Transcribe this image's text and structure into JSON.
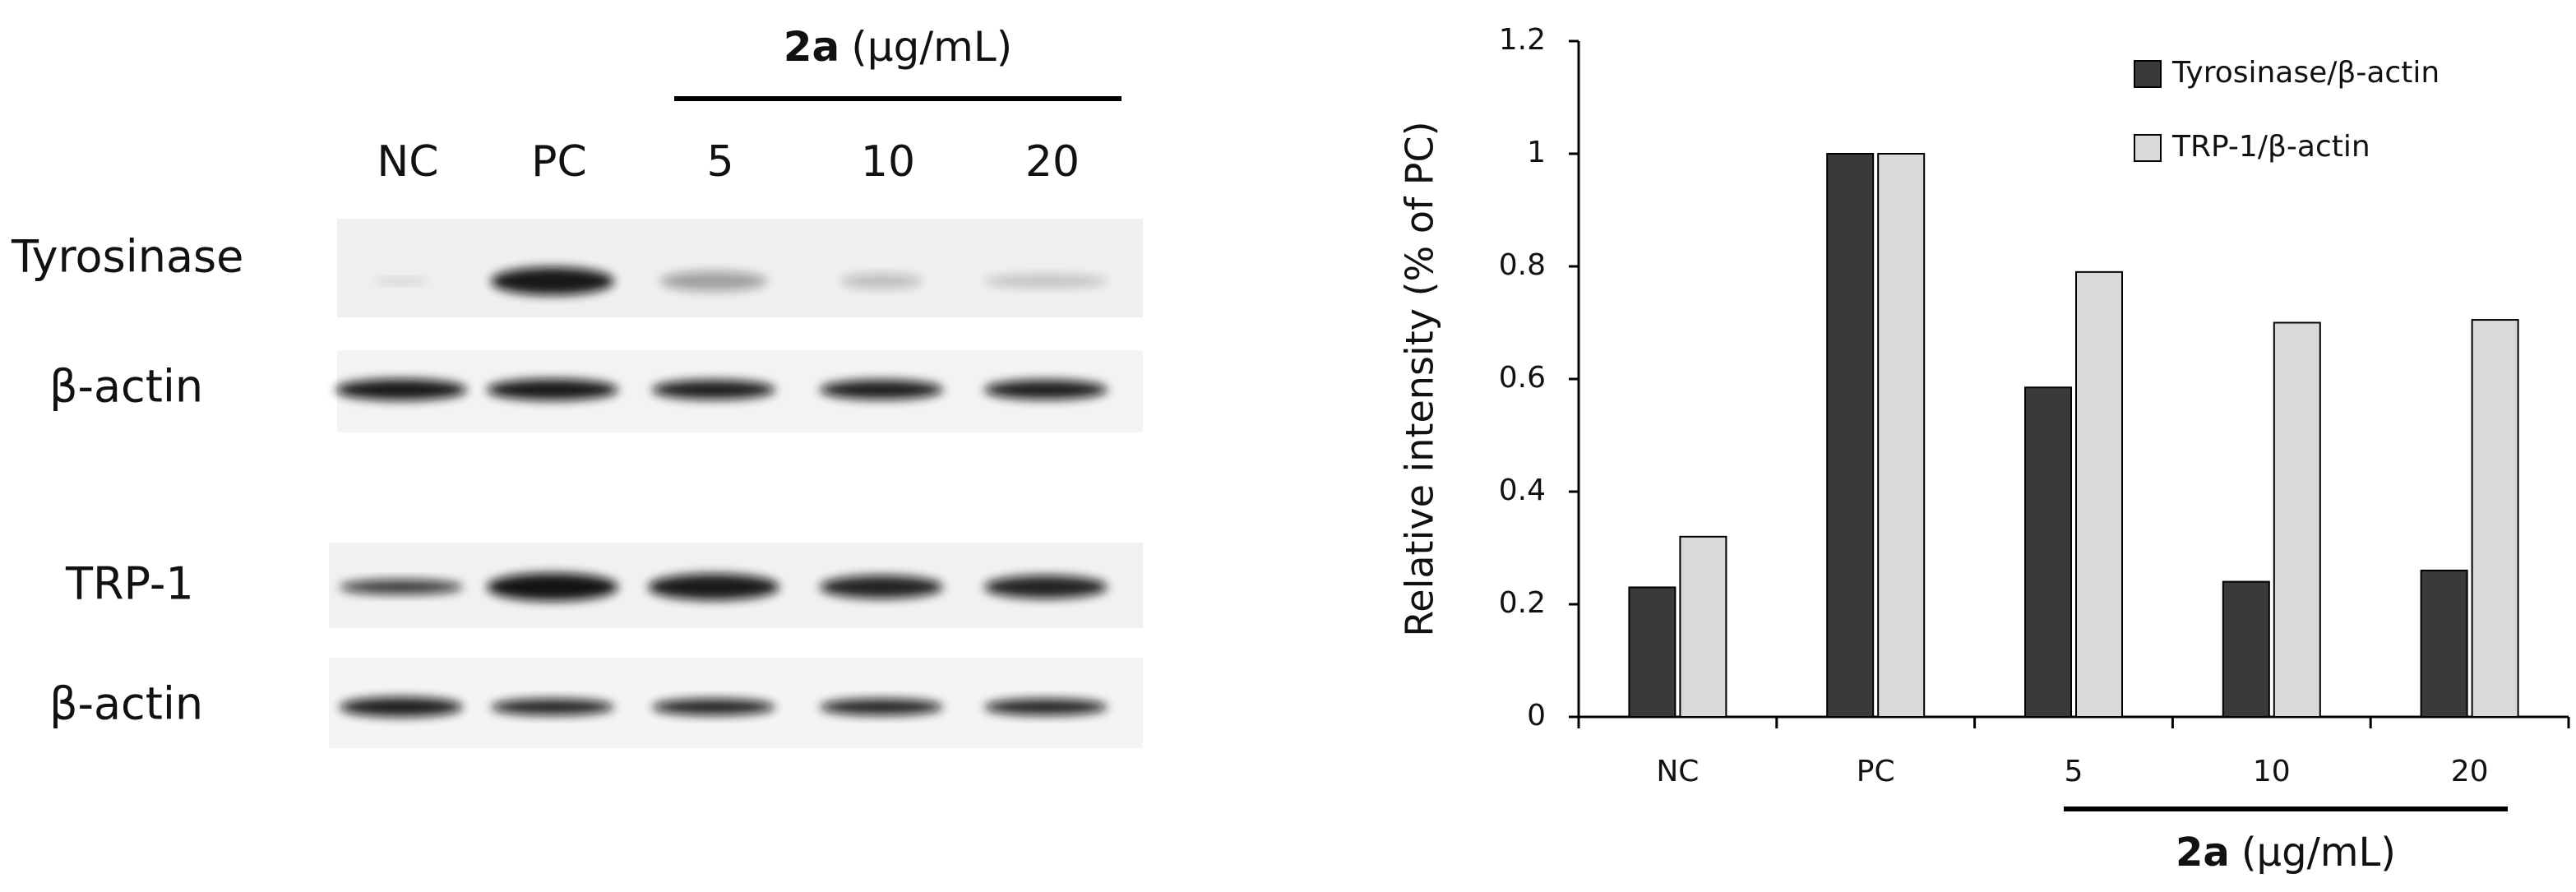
{
  "blot": {
    "group_label": {
      "bold": "2a",
      "unit": "(μg/mL)"
    },
    "lanes": [
      "NC",
      "PC",
      "5",
      "10",
      "20"
    ],
    "rows": [
      "Tyrosinase",
      "β-actin",
      "TRP-1",
      "β-actin"
    ]
  },
  "chart_data": {
    "type": "bar",
    "ylabel": "Relative intensity (% of PC)",
    "categories": [
      "NC",
      "PC",
      "5",
      "10",
      "20"
    ],
    "group_label": {
      "bold": "2a",
      "unit": "(μg/mL)"
    },
    "series": [
      {
        "name": "Tyrosinase/β-actin",
        "color": "#3a3a3a",
        "values": [
          0.23,
          1.0,
          0.585,
          0.24,
          0.26
        ]
      },
      {
        "name": "TRP-1/β-actin",
        "color": "#d9d9d9",
        "values": [
          0.32,
          1.0,
          0.79,
          0.7,
          0.705
        ]
      }
    ],
    "ylim": [
      0,
      1.2
    ],
    "yticks": [
      0,
      0.2,
      0.4,
      0.6,
      0.8,
      1,
      1.2
    ]
  }
}
